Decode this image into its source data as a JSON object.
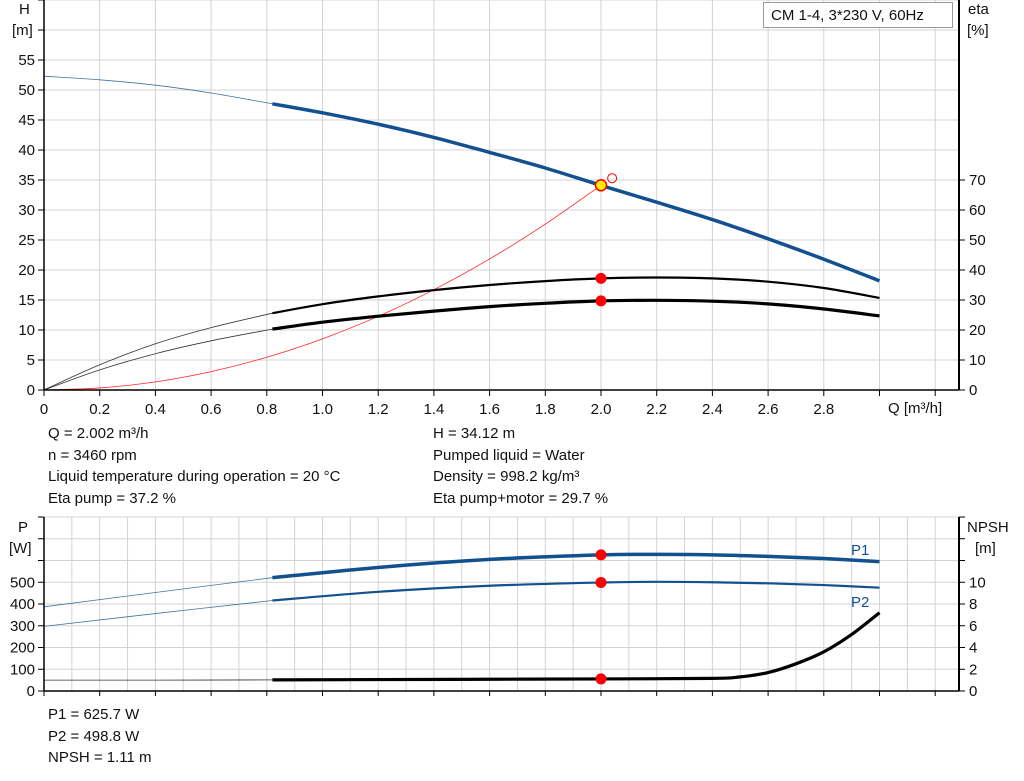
{
  "legend": "CM 1-4, 3*230 V, 60Hz",
  "colors": {
    "head": "#12508f",
    "efficiency": "#000000",
    "system_curve": "#ff2020",
    "power": "#12508f",
    "npsh": "#000000",
    "duty_point": "#ff0000",
    "duty_point_head_fill": "#ffee00",
    "grid": "#d0d3d6"
  },
  "chart_data": [
    {
      "type": "line",
      "xlabel": "Q [m³/h]",
      "ylabel_left": [
        "H",
        "[m]"
      ],
      "ylabel_right": [
        "eta",
        "[%]"
      ],
      "xlim": [
        0,
        3.3
      ],
      "ylim_left": [
        0,
        65
      ],
      "ylim_right": [
        0,
        130
      ],
      "x_ticks": [
        "0",
        "0.2",
        "0.4",
        "0.6",
        "0.8",
        "1.0",
        "1.2",
        "1.4",
        "1.6",
        "1.8",
        "2.0",
        "2.2",
        "2.4",
        "2.6",
        "2.8"
      ],
      "y_ticks_left": [
        "0",
        "5",
        "10",
        "15",
        "20",
        "25",
        "30",
        "35",
        "40",
        "45",
        "50",
        "55"
      ],
      "y_ticks_right": [
        "0",
        "10",
        "20",
        "30",
        "40",
        "50",
        "60",
        "70"
      ],
      "grid": true,
      "series": [
        {
          "key": "H",
          "axis": "left",
          "x": [
            0,
            0.2,
            0.4,
            0.6,
            0.82,
            1.0,
            1.2,
            1.4,
            1.6,
            1.8,
            2.0,
            2.2,
            2.4,
            2.6,
            2.8,
            3.0
          ],
          "y": [
            52.3,
            51.7,
            50.8,
            49.5,
            47.7,
            46.2,
            44.3,
            42.1,
            39.6,
            37.0,
            34.1,
            31.3,
            28.4,
            25.2,
            21.8,
            18.2
          ],
          "thick_from": 0.82
        },
        {
          "key": "eta_pump",
          "axis": "right",
          "x": [
            0,
            0.2,
            0.4,
            0.6,
            0.82,
            1.0,
            1.2,
            1.4,
            1.6,
            1.8,
            2.0,
            2.2,
            2.4,
            2.6,
            2.8,
            3.0
          ],
          "y": [
            0,
            8.4,
            15.4,
            20.8,
            25.6,
            28.6,
            31.2,
            33.3,
            35.0,
            36.3,
            37.2,
            37.5,
            37.2,
            36.1,
            34.0,
            30.7
          ],
          "thick_from": 0.82
        },
        {
          "key": "eta_pump_motor",
          "axis": "right",
          "x": [
            0,
            0.2,
            0.4,
            0.6,
            0.82,
            1.0,
            1.2,
            1.4,
            1.6,
            1.8,
            2.0,
            2.2,
            2.4,
            2.6,
            2.8,
            3.0
          ],
          "y": [
            0,
            6.7,
            12.1,
            16.4,
            20.3,
            22.6,
            24.6,
            26.3,
            27.8,
            28.9,
            29.7,
            29.9,
            29.6,
            28.7,
            27.0,
            24.7
          ],
          "thick_from": 0.82
        },
        {
          "key": "system_curve",
          "axis": "left",
          "x": [
            0,
            0.2,
            0.4,
            0.6,
            0.8,
            1.0,
            1.2,
            1.4,
            1.6,
            1.8,
            2.0
          ],
          "y": [
            0,
            0.34,
            1.36,
            3.07,
            5.46,
            8.53,
            12.28,
            16.72,
            21.84,
            27.64,
            34.12
          ]
        }
      ],
      "duty_point": {
        "Q": 2.0,
        "H": 34.12,
        "eta_pump": 37.2,
        "eta_pump_motor": 29.7
      },
      "requested_point": {
        "Q": 2.04,
        "H": 35.3
      }
    },
    {
      "type": "line",
      "xlim": [
        0,
        3.3
      ],
      "ylabel_left": [
        "P",
        "[W]"
      ],
      "ylabel_right": [
        "NPSH",
        "[m]"
      ],
      "ylim_left": [
        0,
        800
      ],
      "ylim_right": [
        0,
        16
      ],
      "y_ticks_left": [
        "0",
        "100",
        "200",
        "300",
        "400",
        "500"
      ],
      "y_ticks_right": [
        "0",
        "2",
        "4",
        "6",
        "8",
        "10"
      ],
      "grid": true,
      "series": [
        {
          "key": "P1",
          "name": "P1",
          "axis": "left",
          "x": [
            0,
            0.4,
            0.82,
            1.2,
            1.6,
            2.0,
            2.2,
            2.4,
            2.6,
            2.8,
            3.0
          ],
          "y": [
            387,
            453,
            521,
            568,
            605,
            625.7,
            628,
            626,
            619,
            609,
            595
          ],
          "thick_from": 0.82
        },
        {
          "key": "P2",
          "name": "P2",
          "axis": "left",
          "x": [
            0,
            0.4,
            0.82,
            1.2,
            1.6,
            2.0,
            2.2,
            2.4,
            2.6,
            2.8,
            3.0
          ],
          "y": [
            297,
            356,
            416,
            456,
            484,
            498.8,
            502,
            500,
            495,
            487,
            475
          ],
          "thick_from": 0.82
        },
        {
          "key": "NPSH",
          "axis": "right",
          "x": [
            0,
            0.4,
            0.82,
            1.2,
            1.6,
            2.0,
            2.4,
            2.5,
            2.6,
            2.7,
            2.8,
            2.9,
            3.0
          ],
          "y": [
            1.0,
            1.0,
            1.02,
            1.05,
            1.08,
            1.11,
            1.16,
            1.3,
            1.7,
            2.5,
            3.6,
            5.2,
            7.2
          ],
          "thick_from": 0.82
        }
      ],
      "duty_point": {
        "Q": 2.0,
        "P1": 625.7,
        "P2": 498.8,
        "NPSH": 1.11
      }
    }
  ],
  "info_top": {
    "left": [
      "Q = 2.002 m³/h",
      "n = 3460 rpm",
      "Liquid temperature during operation = 20 °C",
      "Eta pump = 37.2 %"
    ],
    "right": [
      "H = 34.12 m",
      "Pumped liquid = Water",
      "Density = 998.2 kg/m³",
      "Eta pump+motor = 29.7 %"
    ]
  },
  "info_bottom": [
    "P1 = 625.7 W",
    "P2 = 498.8 W",
    "NPSH = 1.11 m"
  ]
}
